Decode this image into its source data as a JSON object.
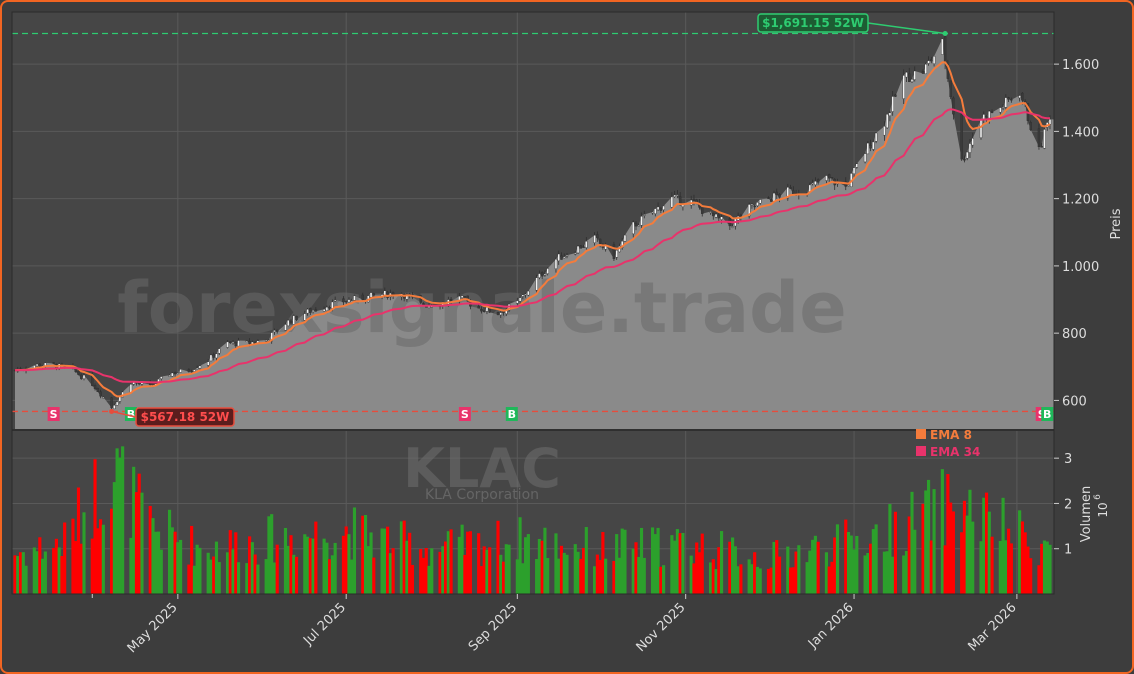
{
  "chart_data": {
    "type": "candlestick",
    "ticker": "KLAC",
    "company": "KLA Corporation",
    "watermark": "forexsignale.trade",
    "price_ylabel": "Preis",
    "volume_ylabel": "Volumen",
    "volume_exponent": "10",
    "volume_exponent_power": "6",
    "price_ylim": [
      515,
      1755
    ],
    "price_ticks": [
      600,
      800,
      1000,
      1200,
      1400,
      1600
    ],
    "price_tick_labels": [
      "600",
      "800",
      "1.000",
      "1.200",
      "1.400",
      "1.600"
    ],
    "volume_ylim": [
      0,
      3.6
    ],
    "volume_ticks": [
      1,
      2,
      3
    ],
    "volume_tick_labels": [
      "1",
      "2",
      "3"
    ],
    "x_tick_labels": [
      "May 2025",
      "Jul 2025",
      "Sep 2025",
      "Nov 2025",
      "Jan 2026",
      "Mar 2026"
    ],
    "x_tick_dates": [
      "2025-05-01",
      "2025-07-01",
      "2025-09-01",
      "2025-11-01",
      "2026-01-01",
      "2026-03-01"
    ],
    "date_range": [
      "2025-03-03",
      "2026-03-13"
    ],
    "high_52w": {
      "value": 1691.15,
      "label": "$1,691.15 52W",
      "date": "2026-02-03"
    },
    "low_52w": {
      "value": 567.18,
      "label": "$567.18 52W",
      "date": "2025-04-07"
    },
    "legend": [
      {
        "label": "EMA 8",
        "color": "#f47c3c"
      },
      {
        "label": "EMA 34",
        "color": "#e8336b"
      }
    ],
    "colors": {
      "up": "#2ca02c",
      "down": "#ff0000",
      "high_line": "#2ecc71",
      "low_line": "#e74c3c",
      "area": "#8a8a8a",
      "buy": "#1fb85a",
      "sell": "#e8336b"
    },
    "signals": [
      {
        "type": "S",
        "date": "2025-03-17"
      },
      {
        "type": "B",
        "date": "2025-04-14"
      },
      {
        "type": "S",
        "date": "2025-08-13"
      },
      {
        "type": "B",
        "date": "2025-08-30"
      },
      {
        "type": "S",
        "date": "2026-03-10"
      },
      {
        "type": "B",
        "date": "2026-03-12"
      }
    ],
    "close_anchors": [
      [
        "2025-03-03",
        690
      ],
      [
        "2025-03-10",
        705
      ],
      [
        "2025-03-17",
        705
      ],
      [
        "2025-03-24",
        690
      ],
      [
        "2025-03-31",
        650
      ],
      [
        "2025-04-07",
        580
      ],
      [
        "2025-04-14",
        655
      ],
      [
        "2025-04-21",
        640
      ],
      [
        "2025-04-28",
        680
      ],
      [
        "2025-05-05",
        690
      ],
      [
        "2025-05-12",
        720
      ],
      [
        "2025-05-19",
        770
      ],
      [
        "2025-05-26",
        770
      ],
      [
        "2025-06-02",
        780
      ],
      [
        "2025-06-09",
        830
      ],
      [
        "2025-06-16",
        860
      ],
      [
        "2025-06-23",
        880
      ],
      [
        "2025-06-30",
        895
      ],
      [
        "2025-07-07",
        905
      ],
      [
        "2025-07-14",
        915
      ],
      [
        "2025-07-21",
        920
      ],
      [
        "2025-07-28",
        885
      ],
      [
        "2025-08-04",
        890
      ],
      [
        "2025-08-11",
        905
      ],
      [
        "2025-08-18",
        875
      ],
      [
        "2025-08-25",
        860
      ],
      [
        "2025-09-01",
        890
      ],
      [
        "2025-09-08",
        960
      ],
      [
        "2025-09-15",
        1020
      ],
      [
        "2025-09-22",
        1050
      ],
      [
        "2025-09-29",
        1080
      ],
      [
        "2025-10-06",
        1030
      ],
      [
        "2025-10-13",
        1120
      ],
      [
        "2025-10-20",
        1160
      ],
      [
        "2025-10-27",
        1200
      ],
      [
        "2025-11-03",
        1190
      ],
      [
        "2025-11-10",
        1150
      ],
      [
        "2025-11-17",
        1120
      ],
      [
        "2025-11-24",
        1170
      ],
      [
        "2025-12-01",
        1200
      ],
      [
        "2025-12-08",
        1220
      ],
      [
        "2025-12-15",
        1230
      ],
      [
        "2025-12-22",
        1260
      ],
      [
        "2025-12-29",
        1235
      ],
      [
        "2026-01-05",
        1340
      ],
      [
        "2026-01-12",
        1430
      ],
      [
        "2026-01-19",
        1560
      ],
      [
        "2026-01-26",
        1580
      ],
      [
        "2026-02-02",
        1660
      ],
      [
        "2026-02-09",
        1310
      ],
      [
        "2026-02-16",
        1440
      ],
      [
        "2026-02-23",
        1470
      ],
      [
        "2026-03-02",
        1520
      ],
      [
        "2026-03-09",
        1340
      ],
      [
        "2026-03-13",
        1450
      ]
    ],
    "volume_anchors": [
      [
        "2025-03-03",
        0.9
      ],
      [
        "2025-03-20",
        1.1
      ],
      [
        "2025-04-07",
        2.8
      ],
      [
        "2025-04-21",
        1.5
      ],
      [
        "2025-05-10",
        1.0
      ],
      [
        "2025-06-01",
        1.2
      ],
      [
        "2025-07-01",
        1.4
      ],
      [
        "2025-08-01",
        1.0
      ],
      [
        "2025-09-01",
        1.2
      ],
      [
        "2025-10-01",
        1.0
      ],
      [
        "2025-11-01",
        1.1
      ],
      [
        "2025-12-01",
        0.8
      ],
      [
        "2026-01-10",
        1.3
      ],
      [
        "2026-02-05",
        2.0
      ],
      [
        "2026-03-13",
        1.0
      ]
    ]
  }
}
